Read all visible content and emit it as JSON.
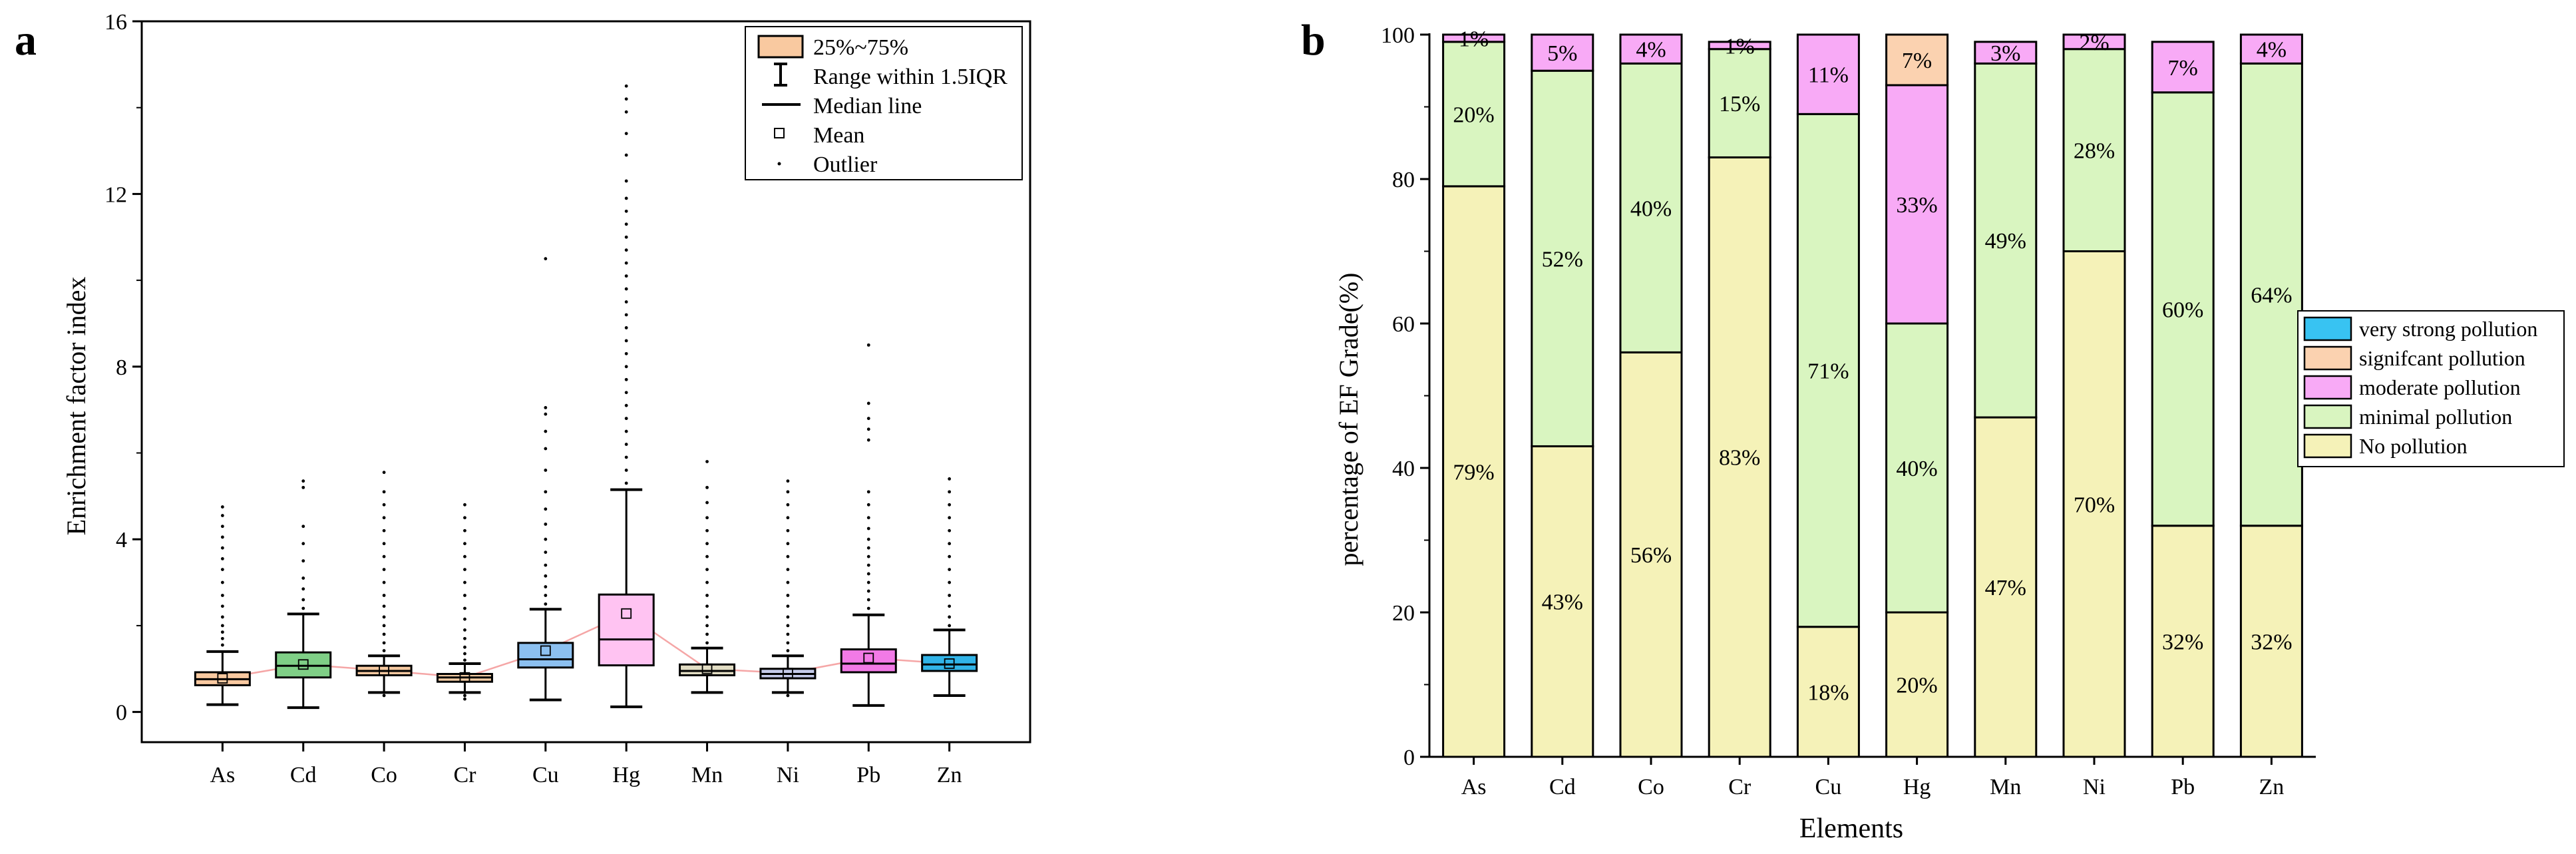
{
  "chart_data": [
    {
      "panel_label": "a",
      "type": "box",
      "ylabel": "Enrichment factor index",
      "xlabel": "",
      "ylim": [
        -0.7,
        16
      ],
      "yticks": [
        0,
        4,
        8,
        12,
        16
      ],
      "categories": [
        "As",
        "Cd",
        "Co",
        "Cr",
        "Cu",
        "Hg",
        "Mn",
        "Ni",
        "Pb",
        "Zn"
      ],
      "colors": [
        "#f9c9a0",
        "#7fcf86",
        "#f5c8a0",
        "#f6cda4",
        "#8cc0f0",
        "#ffc3f2",
        "#e2ddc4",
        "#c5cbea",
        "#f27ae6",
        "#31b4e8"
      ],
      "mean_line_color": "#f5a6a6",
      "legend": {
        "box": "25%~75%",
        "whisker": "Range within 1.5IQR",
        "median": "Median line",
        "mean": "Mean",
        "outlier": "Outlier"
      },
      "boxes": [
        {
          "name": "As",
          "whisker_low": 0.17,
          "q1": 0.62,
          "median": 0.76,
          "q3": 0.92,
          "whisker_high": 1.4,
          "mean": 0.78,
          "outliers": [
            1.55,
            1.7,
            1.85,
            2.0,
            2.2,
            2.45,
            2.7,
            3.0,
            3.3,
            3.55,
            3.8,
            4.05,
            4.3,
            4.55,
            4.75
          ]
        },
        {
          "name": "Cd",
          "whisker_low": 0.1,
          "q1": 0.8,
          "median": 1.07,
          "q3": 1.38,
          "whisker_high": 2.27,
          "mean": 1.1,
          "outliers": [
            2.4,
            2.6,
            2.85,
            3.1,
            3.5,
            3.9,
            4.3,
            5.2,
            5.35
          ]
        },
        {
          "name": "Co",
          "whisker_low": 0.45,
          "q1": 0.85,
          "median": 0.95,
          "q3": 1.07,
          "whisker_high": 1.3,
          "mean": 0.96,
          "outliers": [
            0.38,
            1.42,
            1.6,
            1.8,
            2.0,
            2.2,
            2.45,
            2.7,
            3.0,
            3.3,
            3.6,
            3.9,
            4.2,
            4.5,
            4.8,
            5.1,
            5.55
          ]
        },
        {
          "name": "Cr",
          "whisker_low": 0.45,
          "q1": 0.7,
          "median": 0.8,
          "q3": 0.88,
          "whisker_high": 1.12,
          "mean": 0.8,
          "outliers": [
            0.3,
            0.38,
            1.2,
            1.35,
            1.5,
            1.7,
            1.9,
            2.15,
            2.4,
            2.7,
            3.0,
            3.3,
            3.6,
            3.9,
            4.2,
            4.5,
            4.8
          ]
        },
        {
          "name": "Cu",
          "whisker_low": 0.28,
          "q1": 1.03,
          "median": 1.22,
          "q3": 1.6,
          "whisker_high": 2.38,
          "mean": 1.42,
          "outliers": [
            2.5,
            2.7,
            2.9,
            3.15,
            3.4,
            3.7,
            4.0,
            4.35,
            4.7,
            5.1,
            5.6,
            6.1,
            6.5,
            6.9,
            7.05,
            10.5
          ]
        },
        {
          "name": "Hg",
          "whisker_low": 0.12,
          "q1": 1.08,
          "median": 1.68,
          "q3": 2.72,
          "whisker_high": 5.15,
          "mean": 2.28,
          "outliers": [
            5.3,
            5.6,
            5.9,
            6.2,
            6.5,
            6.8,
            7.1,
            7.4,
            7.7,
            8.0,
            8.3,
            8.6,
            8.9,
            9.2,
            9.5,
            9.8,
            10.1,
            10.4,
            10.7,
            11.0,
            11.3,
            11.6,
            11.9,
            12.3,
            12.9,
            13.4,
            13.9,
            14.2,
            14.5
          ]
        },
        {
          "name": "Mn",
          "whisker_low": 0.45,
          "q1": 0.85,
          "median": 0.95,
          "q3": 1.1,
          "whisker_high": 1.48,
          "mean": 1.0,
          "outliers": [
            1.6,
            1.8,
            2.0,
            2.2,
            2.45,
            2.7,
            3.0,
            3.3,
            3.6,
            3.9,
            4.2,
            4.5,
            4.85,
            5.2,
            5.8
          ]
        },
        {
          "name": "Ni",
          "whisker_low": 0.45,
          "q1": 0.78,
          "median": 0.88,
          "q3": 1.0,
          "whisker_high": 1.3,
          "mean": 0.9,
          "outliers": [
            0.38,
            1.42,
            1.6,
            1.8,
            2.0,
            2.2,
            2.45,
            2.7,
            3.0,
            3.3,
            3.6,
            3.9,
            4.2,
            4.5,
            4.8,
            5.1,
            5.35
          ]
        },
        {
          "name": "Pb",
          "whisker_low": 0.15,
          "q1": 0.92,
          "median": 1.12,
          "q3": 1.45,
          "whisker_high": 2.25,
          "mean": 1.25,
          "outliers": [
            2.4,
            2.6,
            2.8,
            3.0,
            3.2,
            3.4,
            3.6,
            3.8,
            4.0,
            4.25,
            4.5,
            4.8,
            5.1,
            6.3,
            6.55,
            6.8,
            7.15,
            8.5
          ]
        },
        {
          "name": "Zn",
          "whisker_low": 0.38,
          "q1": 0.95,
          "median": 1.1,
          "q3": 1.32,
          "whisker_high": 1.9,
          "mean": 1.12,
          "outliers": [
            2.0,
            2.2,
            2.45,
            2.7,
            3.0,
            3.3,
            3.6,
            3.9,
            4.2,
            4.5,
            4.8,
            5.1,
            5.4
          ]
        }
      ]
    },
    {
      "panel_label": "b",
      "type": "stacked_bar",
      "ylabel": "percentage of EF Grade(%)",
      "xlabel": "Elements",
      "ylim": [
        0,
        100
      ],
      "yticks": [
        0,
        20,
        40,
        60,
        80,
        100
      ],
      "categories": [
        "As",
        "Cd",
        "Co",
        "Cr",
        "Cu",
        "Hg",
        "Mn",
        "Ni",
        "Pb",
        "Zn"
      ],
      "series": [
        {
          "name": "No  pollution",
          "color": "#f5f2b8",
          "values": [
            79,
            43,
            56,
            83,
            18,
            20,
            47,
            70,
            32,
            32
          ],
          "labels": [
            "79%",
            "43%",
            "56%",
            "83%",
            "18%",
            "20%",
            "47%",
            "70%",
            "32%",
            "32%"
          ]
        },
        {
          "name": "minimal pollution",
          "color": "#d9f5c0",
          "values": [
            20,
            52,
            40,
            15,
            71,
            40,
            49,
            28,
            60,
            64
          ],
          "labels": [
            "20%",
            "52%",
            "40%",
            "15%",
            "71%",
            "40%",
            "49%",
            "28%",
            "60%",
            "64%"
          ]
        },
        {
          "name": "moderate pollution",
          "color": "#f8aaf6",
          "values": [
            1,
            5,
            4,
            1,
            11,
            33,
            3,
            2,
            7,
            4
          ],
          "labels": [
            "1%",
            "5%",
            "4%",
            "1%",
            "11%",
            "33%",
            "3%",
            "2%",
            "7%",
            "4%"
          ]
        },
        {
          "name": "signifcant pollution",
          "color": "#fbd2b0",
          "values": [
            0,
            0,
            0,
            0,
            0,
            7,
            0,
            0,
            0,
            0
          ],
          "labels": [
            "",
            "",
            "",
            "",
            "",
            "7%",
            "",
            "",
            "",
            ""
          ]
        },
        {
          "name": "very strong pollution",
          "color": "#38c3f2",
          "values": [
            0,
            0,
            0,
            0,
            0,
            0,
            0,
            0,
            0,
            0
          ],
          "labels": [
            "",
            "",
            "",
            "",
            "",
            "",
            "",
            "",
            "",
            ""
          ]
        }
      ],
      "legend_order": [
        "very strong pollution",
        "signifcant pollution",
        "moderate pollution",
        "minimal pollution",
        "No  pollution"
      ]
    }
  ]
}
